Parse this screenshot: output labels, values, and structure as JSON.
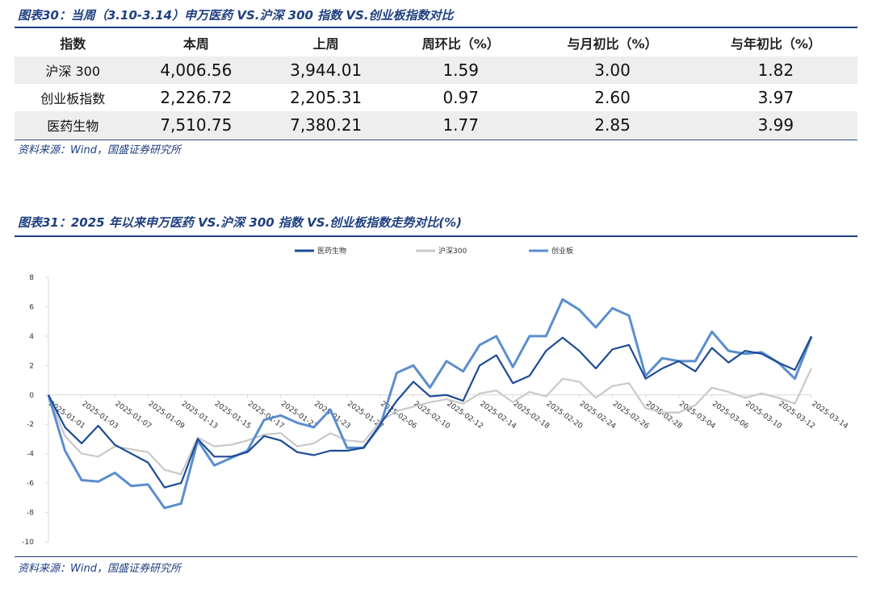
{
  "table_title": "图表30：当周（3.10-3.14）申万医药 VS.沪深 300 指数 VS.创业板指数对比",
  "table": {
    "header": [
      "指数",
      "本周",
      "上周",
      "周环比（%）",
      "与月初比（%）",
      "与年初比（%）"
    ],
    "rows": [
      [
        "沪深 300",
        "4,006.56",
        "3,944.01",
        "1.59",
        "3.00",
        "1.82"
      ],
      [
        "创业板指数",
        "2,226.72",
        "2,205.31",
        "0.97",
        "2.60",
        "3.97"
      ],
      [
        "医药生物",
        "7,510.75",
        "7,380.21",
        "1.77",
        "2.85",
        "3.99"
      ]
    ]
  },
  "table_source": "资料来源：Wind，国盛证券研究所",
  "chart_data": {
    "type": "line",
    "title": "图表31：2025 年以来申万医药 VS.沪深 300 指数 VS.创业板指数走势对比(%)",
    "source": "资料来源：Wind，国盛证券研究所",
    "categories": [
      "2025-01-01",
      null,
      "2025-01-03",
      null,
      "2025-01-07",
      null,
      "2025-01-09",
      null,
      "2025-01-13",
      null,
      "2025-01-15",
      null,
      "2025-01-17",
      null,
      "2025-01-21",
      null,
      "2025-01-23",
      null,
      "2025-01-27",
      null,
      "2025-02-06",
      null,
      "2025-02-10",
      null,
      "2025-02-12",
      null,
      "2025-02-14",
      null,
      "2025-02-18",
      null,
      "2025-02-20",
      null,
      "2025-02-24",
      null,
      "2025-02-26",
      null,
      "2025-02-28",
      null,
      "2025-03-04",
      null,
      "2025-03-06",
      null,
      "2025-03-10",
      null,
      "2025-03-12",
      null,
      "2025-03-14"
    ],
    "series": [
      {
        "name": "医药生物",
        "color": "#1c4b96",
        "values": [
          0,
          -2.2,
          -3.3,
          -2.1,
          -3.4,
          -4.0,
          -4.6,
          -6.3,
          -6.0,
          -3.0,
          -4.2,
          -4.2,
          -3.9,
          -2.8,
          -3.1,
          -3.9,
          -4.1,
          -3.8,
          -3.8,
          -3.6,
          -2.0,
          -0.4,
          0.9,
          -0.1,
          0.0,
          -0.4,
          2.0,
          2.7,
          0.8,
          1.3,
          3.0,
          3.9,
          3.0,
          1.8,
          3.1,
          3.4,
          1.1,
          1.8,
          2.3,
          1.6,
          3.2,
          2.2,
          3.0,
          2.8,
          2.2,
          1.7,
          3.99
        ]
      },
      {
        "name": "沪深300",
        "color": "#c9c9c9",
        "values": [
          0,
          -2.8,
          -4.0,
          -4.2,
          -3.5,
          -3.7,
          -3.9,
          -5.1,
          -5.4,
          -2.9,
          -3.5,
          -3.4,
          -3.1,
          -2.7,
          -2.6,
          -3.5,
          -3.3,
          -2.6,
          -3.1,
          -3.2,
          -1.8,
          -1.1,
          -0.8,
          -0.5,
          -0.3,
          -0.6,
          0.1,
          0.3,
          -0.5,
          0.2,
          -0.1,
          1.1,
          0.9,
          -0.2,
          0.6,
          0.8,
          -0.9,
          -1.2,
          -1.2,
          -0.7,
          0.5,
          0.2,
          -0.2,
          0.1,
          -0.2,
          -0.6,
          1.82
        ]
      },
      {
        "name": "创业板",
        "color": "#5a8ecf",
        "values": [
          0,
          -3.8,
          -5.8,
          -5.9,
          -5.3,
          -6.2,
          -6.1,
          -7.7,
          -7.4,
          -3.1,
          -4.8,
          -4.3,
          -3.8,
          -1.7,
          -1.4,
          -1.9,
          -2.2,
          -1.0,
          -3.6,
          -3.6,
          -2.1,
          1.5,
          2.0,
          0.5,
          2.3,
          1.6,
          3.4,
          4.0,
          1.9,
          4.0,
          4.0,
          6.5,
          5.8,
          4.6,
          5.9,
          5.4,
          1.3,
          2.5,
          2.3,
          2.3,
          4.3,
          3.0,
          2.8,
          2.9,
          2.2,
          1.1,
          3.97
        ]
      }
    ],
    "ylim": [
      -10,
      8
    ],
    "yticks": [
      -10,
      -8,
      -6,
      -4,
      -2,
      0,
      2,
      4,
      6,
      8
    ],
    "grid": false,
    "legend": "top"
  }
}
